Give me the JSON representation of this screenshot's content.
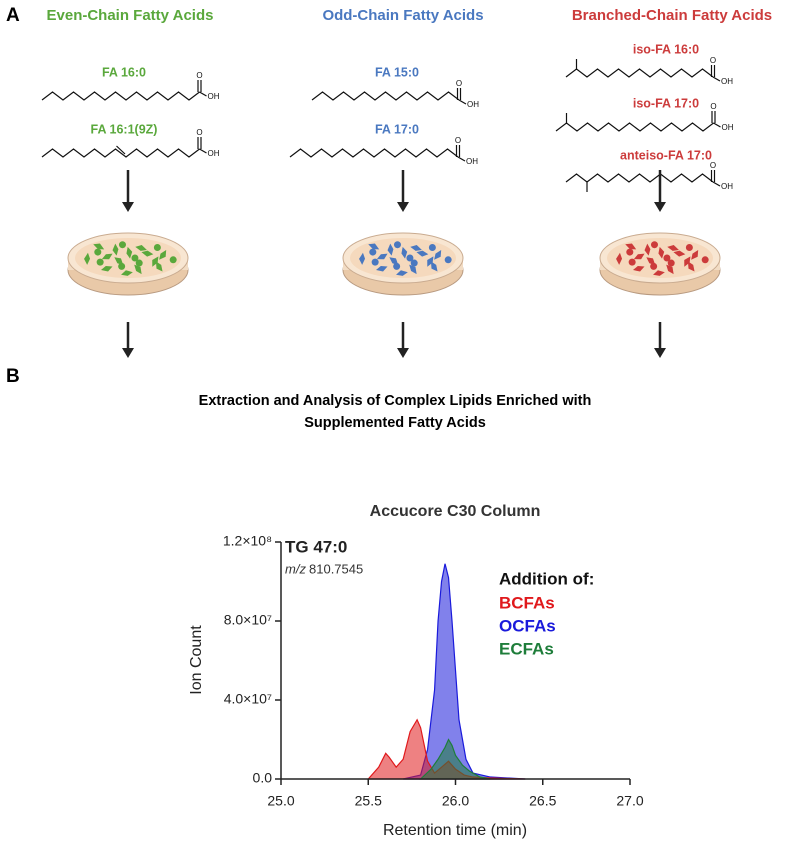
{
  "panel_a": {
    "label": "A",
    "columns": [
      {
        "title": "Even-Chain Fatty Acids",
        "color": "#5aa83c",
        "compounds": [
          "FA 16:0",
          "FA 16:1(9Z)"
        ]
      },
      {
        "title": "Odd-Chain Fatty Acids",
        "color": "#4a78c0",
        "compounds": [
          "FA 15:0",
          "FA 17:0"
        ]
      },
      {
        "title": "Branched-Chain Fatty Acids",
        "color": "#cc3b3b",
        "compounds": [
          "iso-FA 16:0",
          "iso-FA 17:0",
          "anteiso-FA 17:0"
        ]
      }
    ],
    "carbonyl_o": "O",
    "hydroxyl": "OH"
  },
  "panel_b": {
    "label": "B",
    "title_lines": [
      "Extraction and Analysis of Complex Lipids Enriched with",
      "Supplemented Fatty Acids"
    ]
  },
  "chart_data": {
    "type": "area",
    "title": "Accucore C30 Column",
    "x_label": "Retention time (min)",
    "y_label": "Ion Count",
    "annotation": "TG 47:0",
    "mz_prefix": "m/z",
    "mz_value": "810.7545",
    "legend_title": "Addition of:",
    "xlim": [
      25,
      27
    ],
    "ylim": [
      0,
      120000000
    ],
    "xticks": [
      {
        "value": 25,
        "label": "25.0"
      },
      {
        "value": 25.5,
        "label": "25.5"
      },
      {
        "value": 26,
        "label": "26.0"
      },
      {
        "value": 26.5,
        "label": "26.5"
      },
      {
        "value": 27,
        "label": "27.0"
      }
    ],
    "yticks": [
      {
        "value": 0,
        "label": "0.0"
      },
      {
        "value": 40000000,
        "label": "4.0×10⁷"
      },
      {
        "value": 80000000,
        "label": "8.0×10⁷"
      },
      {
        "value": 120000000,
        "label": "1.2×10⁸"
      }
    ],
    "series": [
      {
        "name": "BCFAs",
        "color": "#e0191c",
        "x": [
          25.5,
          25.56,
          25.6,
          25.62,
          25.66,
          25.7,
          25.74,
          25.78,
          25.8,
          25.84,
          25.88,
          25.92,
          25.96,
          26.0,
          26.05,
          26.1,
          26.2,
          26.4
        ],
        "values": [
          0,
          6000000,
          13000000,
          11000000,
          6000000,
          10000000,
          24000000,
          30000000,
          26000000,
          9000000,
          3000000,
          6000000,
          9000000,
          5000000,
          2000000,
          1000000,
          500000,
          0
        ]
      },
      {
        "name": "OCFAs",
        "color": "#1a1adb",
        "x": [
          25.7,
          25.8,
          25.84,
          25.88,
          25.9,
          25.92,
          25.94,
          25.96,
          25.98,
          26.0,
          26.02,
          26.06,
          26.1,
          26.2,
          26.4
        ],
        "values": [
          0,
          2000000,
          15000000,
          45000000,
          80000000,
          100000000,
          109000000,
          102000000,
          80000000,
          55000000,
          30000000,
          10000000,
          3000000,
          1000000,
          0
        ]
      },
      {
        "name": "ECFAs",
        "color": "#1e7d3a",
        "x": [
          25.8,
          25.86,
          25.9,
          25.94,
          25.96,
          25.98,
          26.0,
          26.04,
          26.08,
          26.14,
          26.2
        ],
        "values": [
          0,
          5000000,
          10000000,
          16000000,
          20000000,
          17000000,
          12000000,
          7000000,
          4000000,
          1000000,
          0
        ]
      }
    ]
  }
}
